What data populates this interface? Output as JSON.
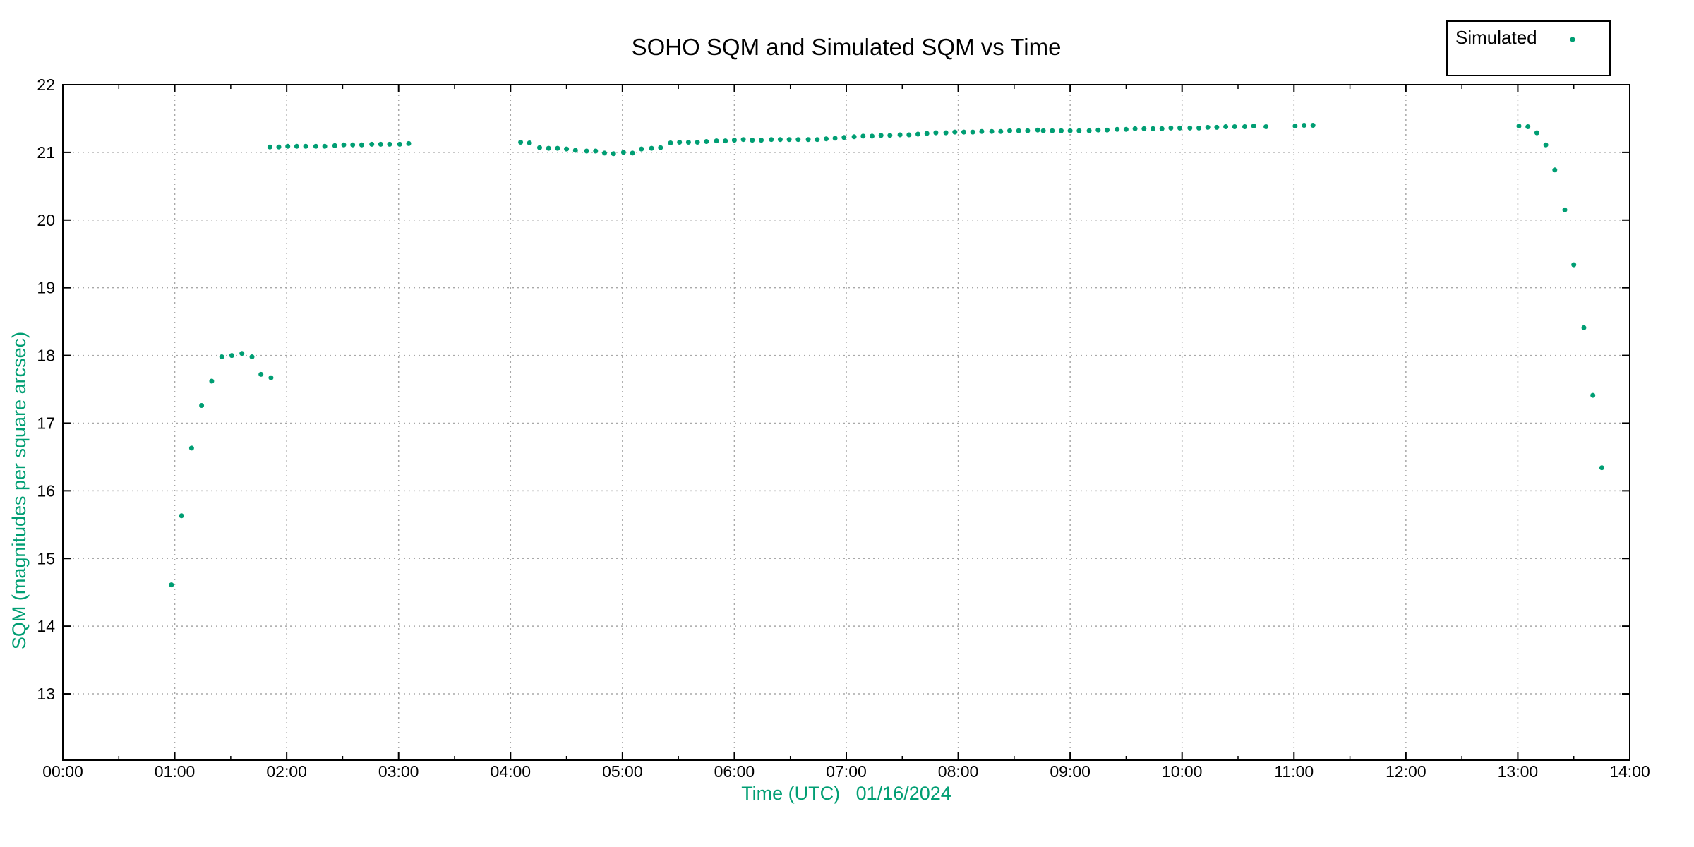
{
  "title": "SOHO SQM and Simulated SQM vs Time",
  "colors": {
    "series": "#009E73",
    "axis_label_text": "#009E73",
    "tick_label_text": "#000000",
    "axis_line": "#000000",
    "grid_line": "#a8a8a8",
    "background": "#ffffff",
    "legend_border": "#000000"
  },
  "legend": {
    "label": "Simulated",
    "position": "top-right",
    "marker": "filled-circle"
  },
  "chart_data": {
    "type": "scatter",
    "title": "SOHO SQM and Simulated SQM vs Time",
    "xlabel": "Time (UTC)   01/16/2024",
    "ylabel": "SQM (magnitudes per square arcsec)",
    "xlim_hours": [
      0,
      14
    ],
    "ylim": [
      12.02,
      22
    ],
    "grid": true,
    "x_minor_tick_step_hours": 0.5,
    "x_ticks": [
      {
        "hour": 0,
        "label": "00:00"
      },
      {
        "hour": 1,
        "label": "01:00"
      },
      {
        "hour": 2,
        "label": "02:00"
      },
      {
        "hour": 3,
        "label": "03:00"
      },
      {
        "hour": 4,
        "label": "04:00"
      },
      {
        "hour": 5,
        "label": "05:00"
      },
      {
        "hour": 6,
        "label": "06:00"
      },
      {
        "hour": 7,
        "label": "07:00"
      },
      {
        "hour": 8,
        "label": "08:00"
      },
      {
        "hour": 9,
        "label": "09:00"
      },
      {
        "hour": 10,
        "label": "10:00"
      },
      {
        "hour": 11,
        "label": "11:00"
      },
      {
        "hour": 12,
        "label": "12:00"
      },
      {
        "hour": 13,
        "label": "13:00"
      },
      {
        "hour": 14,
        "label": "14:00"
      }
    ],
    "y_ticks": [
      13,
      14,
      15,
      16,
      17,
      18,
      19,
      20,
      21,
      22
    ],
    "series": [
      {
        "name": "Simulated",
        "color": "#009E73",
        "marker": "filled-circle",
        "points_hour_mag": [
          [
            0.97,
            14.61
          ],
          [
            1.06,
            15.63
          ],
          [
            1.15,
            16.63
          ],
          [
            1.24,
            17.26
          ],
          [
            1.33,
            17.62
          ],
          [
            1.42,
            17.98
          ],
          [
            1.51,
            18.0
          ],
          [
            1.6,
            18.03
          ],
          [
            1.69,
            17.98
          ],
          [
            1.77,
            17.72
          ],
          [
            1.86,
            17.67
          ],
          [
            1.85,
            21.08
          ],
          [
            1.93,
            21.08
          ],
          [
            2.01,
            21.09
          ],
          [
            2.09,
            21.09
          ],
          [
            2.17,
            21.09
          ],
          [
            2.26,
            21.09
          ],
          [
            2.34,
            21.09
          ],
          [
            2.43,
            21.1
          ],
          [
            2.51,
            21.11
          ],
          [
            2.59,
            21.11
          ],
          [
            2.67,
            21.11
          ],
          [
            2.76,
            21.12
          ],
          [
            2.84,
            21.12
          ],
          [
            2.92,
            21.12
          ],
          [
            3.01,
            21.12
          ],
          [
            3.09,
            21.13
          ],
          [
            4.09,
            21.15
          ],
          [
            4.17,
            21.14
          ],
          [
            4.26,
            21.07
          ],
          [
            4.34,
            21.06
          ],
          [
            4.42,
            21.06
          ],
          [
            4.5,
            21.05
          ],
          [
            4.58,
            21.03
          ],
          [
            4.68,
            21.02
          ],
          [
            4.76,
            21.02
          ],
          [
            4.84,
            20.99
          ],
          [
            4.92,
            20.98
          ],
          [
            5.01,
            21.0
          ],
          [
            5.09,
            20.99
          ],
          [
            5.17,
            21.05
          ],
          [
            5.26,
            21.06
          ],
          [
            5.34,
            21.07
          ],
          [
            5.43,
            21.14
          ],
          [
            5.51,
            21.15
          ],
          [
            5.59,
            21.15
          ],
          [
            5.67,
            21.15
          ],
          [
            5.75,
            21.16
          ],
          [
            5.84,
            21.17
          ],
          [
            5.92,
            21.17
          ],
          [
            6.0,
            21.18
          ],
          [
            6.08,
            21.19
          ],
          [
            6.16,
            21.18
          ],
          [
            6.24,
            21.18
          ],
          [
            6.33,
            21.19
          ],
          [
            6.41,
            21.19
          ],
          [
            6.49,
            21.19
          ],
          [
            6.57,
            21.19
          ],
          [
            6.66,
            21.19
          ],
          [
            6.74,
            21.19
          ],
          [
            6.82,
            21.2
          ],
          [
            6.9,
            21.21
          ],
          [
            6.98,
            21.22
          ],
          [
            7.07,
            21.23
          ],
          [
            7.15,
            21.24
          ],
          [
            7.23,
            21.24
          ],
          [
            7.31,
            21.25
          ],
          [
            7.39,
            21.25
          ],
          [
            7.48,
            21.26
          ],
          [
            7.56,
            21.26
          ],
          [
            7.64,
            21.27
          ],
          [
            7.72,
            21.28
          ],
          [
            7.8,
            21.29
          ],
          [
            7.89,
            21.29
          ],
          [
            7.97,
            21.3
          ],
          [
            8.05,
            21.3
          ],
          [
            8.13,
            21.3
          ],
          [
            8.21,
            21.31
          ],
          [
            8.3,
            21.31
          ],
          [
            8.38,
            21.31
          ],
          [
            8.46,
            21.32
          ],
          [
            8.54,
            21.32
          ],
          [
            8.62,
            21.32
          ],
          [
            8.71,
            21.33
          ],
          [
            8.76,
            21.32
          ],
          [
            8.84,
            21.32
          ],
          [
            8.92,
            21.32
          ],
          [
            9.0,
            21.32
          ],
          [
            9.08,
            21.32
          ],
          [
            9.17,
            21.32
          ],
          [
            9.25,
            21.33
          ],
          [
            9.33,
            21.33
          ],
          [
            9.42,
            21.34
          ],
          [
            9.5,
            21.34
          ],
          [
            9.58,
            21.35
          ],
          [
            9.66,
            21.35
          ],
          [
            9.74,
            21.35
          ],
          [
            9.82,
            21.35
          ],
          [
            9.9,
            21.36
          ],
          [
            9.98,
            21.36
          ],
          [
            10.07,
            21.36
          ],
          [
            10.15,
            21.36
          ],
          [
            10.23,
            21.37
          ],
          [
            10.31,
            21.37
          ],
          [
            10.39,
            21.38
          ],
          [
            10.47,
            21.38
          ],
          [
            10.56,
            21.38
          ],
          [
            10.64,
            21.39
          ],
          [
            10.75,
            21.38
          ],
          [
            11.01,
            21.39
          ],
          [
            11.09,
            21.4
          ],
          [
            11.17,
            21.4
          ],
          [
            13.01,
            21.39
          ],
          [
            13.09,
            21.38
          ],
          [
            13.17,
            21.29
          ],
          [
            13.25,
            21.11
          ],
          [
            13.33,
            20.74
          ],
          [
            13.42,
            20.15
          ],
          [
            13.5,
            19.34
          ],
          [
            13.59,
            18.41
          ],
          [
            13.67,
            17.41
          ],
          [
            13.75,
            16.34
          ]
        ]
      }
    ]
  }
}
